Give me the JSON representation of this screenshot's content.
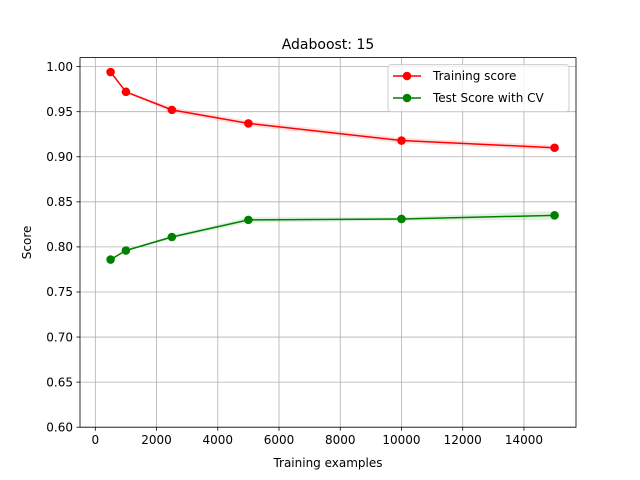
{
  "chart_data": {
    "type": "line",
    "title": "Adaboost: 15",
    "xlabel": "Training examples",
    "ylabel": "Score",
    "xlim": [
      -500,
      15700
    ],
    "ylim": [
      0.6,
      1.01
    ],
    "xticks": [
      0,
      2000,
      4000,
      6000,
      8000,
      10000,
      12000,
      14000
    ],
    "yticks": [
      0.6,
      0.65,
      0.7,
      0.75,
      0.8,
      0.85,
      0.9,
      0.95,
      1.0
    ],
    "xtick_labels": [
      "0",
      "2000",
      "4000",
      "6000",
      "8000",
      "10000",
      "12000",
      "14000"
    ],
    "ytick_labels": [
      "0.60",
      "0.65",
      "0.70",
      "0.75",
      "0.80",
      "0.85",
      "0.90",
      "0.95",
      "1.00"
    ],
    "grid": true,
    "legend_position": "top-right",
    "x": [
      500,
      1000,
      2500,
      5000,
      10000,
      15000
    ],
    "series": [
      {
        "name": "Training score",
        "color": "#ff0000",
        "band_color": "#ff0000",
        "values": [
          0.994,
          0.972,
          0.952,
          0.937,
          0.918,
          0.91
        ],
        "upper": [
          0.995,
          0.973,
          0.955,
          0.94,
          0.921,
          0.913
        ],
        "lower": [
          0.993,
          0.971,
          0.949,
          0.934,
          0.915,
          0.907
        ]
      },
      {
        "name": "Test Score with CV",
        "color": "#008000",
        "band_color": "#008000",
        "values": [
          0.786,
          0.796,
          0.811,
          0.83,
          0.831,
          0.835
        ],
        "upper": [
          0.787,
          0.797,
          0.813,
          0.833,
          0.833,
          0.84
        ],
        "lower": [
          0.785,
          0.795,
          0.809,
          0.827,
          0.829,
          0.83
        ]
      }
    ]
  }
}
